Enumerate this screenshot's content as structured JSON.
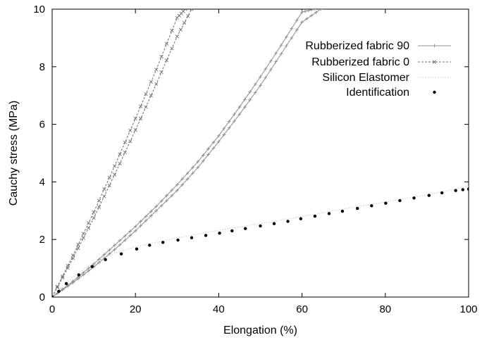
{
  "chart_data": {
    "type": "line",
    "title": "",
    "xlabel": "Elongation (%)",
    "ylabel": "Cauchy stress (MPa)",
    "xlim": [
      0,
      100
    ],
    "ylim": [
      0,
      10
    ],
    "xticks": [
      0,
      20,
      40,
      60,
      80,
      100
    ],
    "yticks": [
      0,
      2,
      4,
      6,
      8,
      10
    ],
    "grid": false,
    "legend_position": "top-right",
    "series": [
      {
        "name": "Rubberized fabric 90",
        "color": "#8c8c8c",
        "style": "solid",
        "marker": "plus",
        "curves": [
          {
            "x": [
              0,
              5,
              10,
              15,
              20,
              25,
              30,
              35,
              40,
              45,
              50,
              55,
              60,
              63
            ],
            "y": [
              0,
              0.55,
              1.15,
              1.8,
              2.45,
              3.15,
              3.9,
              4.7,
              5.6,
              6.6,
              7.65,
              8.75,
              9.9,
              10.0
            ]
          },
          {
            "x": [
              0,
              5,
              10,
              15,
              20,
              25,
              30,
              35,
              40,
              45,
              50,
              55,
              60,
              64.5
            ],
            "y": [
              0,
              0.5,
              1.05,
              1.65,
              2.3,
              3.0,
              3.7,
              4.5,
              5.4,
              6.35,
              7.35,
              8.45,
              9.55,
              10.0
            ]
          }
        ]
      },
      {
        "name": "Rubberized fabric 0",
        "color": "#707070",
        "style": "dashed",
        "marker": "x",
        "curves": [
          {
            "x": [
              0,
              5,
              10,
              15,
              20,
              25,
              30,
              32
            ],
            "y": [
              0,
              1.45,
              2.95,
              4.55,
              6.2,
              7.9,
              9.7,
              10.0
            ]
          },
          {
            "x": [
              0,
              5,
              10,
              15,
              20,
              25,
              30,
              33.5
            ],
            "y": [
              0,
              1.35,
              2.75,
              4.25,
              5.8,
              7.4,
              9.05,
              10.0
            ]
          }
        ]
      },
      {
        "name": "Silicon Elastomer",
        "color": "#c8c8c8",
        "style": "dotted",
        "marker": "none",
        "curves": [
          {
            "x": [
              0,
              2,
              5,
              10,
              15,
              20,
              30,
              40,
              50,
              60,
              70,
              80,
              90,
              100
            ],
            "y": [
              0,
              0.3,
              0.7,
              1.2,
              1.52,
              1.74,
              2.06,
              2.32,
              2.55,
              2.8,
              3.06,
              3.3,
              3.55,
              3.85
            ]
          }
        ]
      },
      {
        "name": "Identification",
        "color": "#000000",
        "style": "none",
        "marker": "dot",
        "points": {
          "x": [
            0,
            1.6,
            3.4,
            6.4,
            9.6,
            12.8,
            16.6,
            20.3,
            23.4,
            26.6,
            30.2,
            33.5,
            36.9,
            40.2,
            43.2,
            46.4,
            50.0,
            53.3,
            56.6,
            59.7,
            63.1,
            66.5,
            69.7,
            73.3,
            76.7,
            80.1,
            83.5,
            86.9,
            90.5,
            93.6,
            96.9,
            98.6,
            100
          ],
          "y": [
            0,
            0.2,
            0.47,
            0.77,
            1.06,
            1.3,
            1.5,
            1.67,
            1.8,
            1.9,
            1.98,
            2.06,
            2.14,
            2.22,
            2.3,
            2.38,
            2.47,
            2.55,
            2.63,
            2.72,
            2.81,
            2.9,
            2.98,
            3.08,
            3.17,
            3.26,
            3.35,
            3.44,
            3.53,
            3.62,
            3.7,
            3.73,
            3.75
          ]
        }
      }
    ]
  }
}
